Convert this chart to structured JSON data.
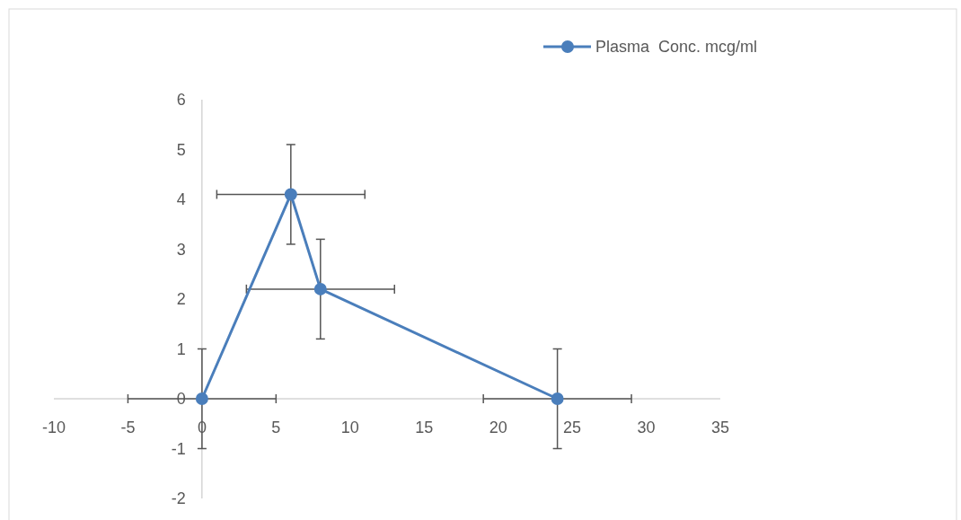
{
  "chart_data": {
    "type": "line",
    "x": [
      0,
      6,
      8,
      24
    ],
    "series": [
      {
        "name": "Plasma  Conc. mcg/ml",
        "color": "#4a7ebb",
        "values": [
          0,
          4.1,
          2.2,
          0
        ],
        "errors": [
          1,
          1,
          1,
          1
        ],
        "xerrors": [
          5,
          5,
          5,
          5
        ]
      }
    ],
    "xlim": [
      -10,
      35
    ],
    "xticks": [
      -10,
      -5,
      0,
      5,
      10,
      15,
      20,
      25,
      30,
      35
    ],
    "ylim": [
      -2,
      6
    ],
    "yticks": [
      -2,
      -1,
      0,
      1,
      2,
      3,
      4,
      5,
      6
    ],
    "grid": false,
    "legend": "top right",
    "marker": "circle",
    "line_style": "solid"
  }
}
